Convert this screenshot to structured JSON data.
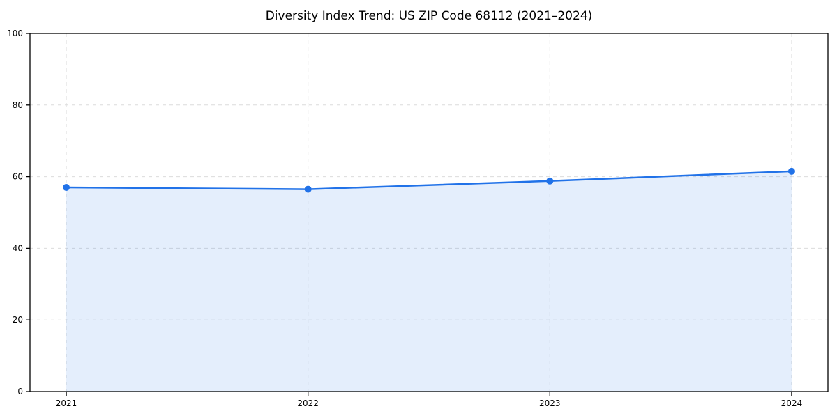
{
  "chart_data": {
    "type": "area",
    "title": "Diversity Index Trend: US ZIP Code 68112 (2021–2024)",
    "categories": [
      "2021",
      "2022",
      "2023",
      "2024"
    ],
    "series": [
      {
        "name": "Diversity Index",
        "values": [
          57.0,
          56.5,
          58.8,
          61.5
        ]
      }
    ],
    "xlabel": "",
    "ylabel": "",
    "ylim": [
      0,
      100
    ],
    "yticks": [
      0,
      20,
      40,
      60,
      80,
      100
    ],
    "grid": true,
    "grid_style": "dashed",
    "legend": false,
    "colors": {
      "line": "#2172e8",
      "marker": "#2172e8",
      "fill": "#2172e8",
      "fill_alpha": 0.12,
      "grid": "#dcdcdc",
      "axis": "#000000",
      "text": "#000000",
      "background": "#ffffff"
    }
  }
}
